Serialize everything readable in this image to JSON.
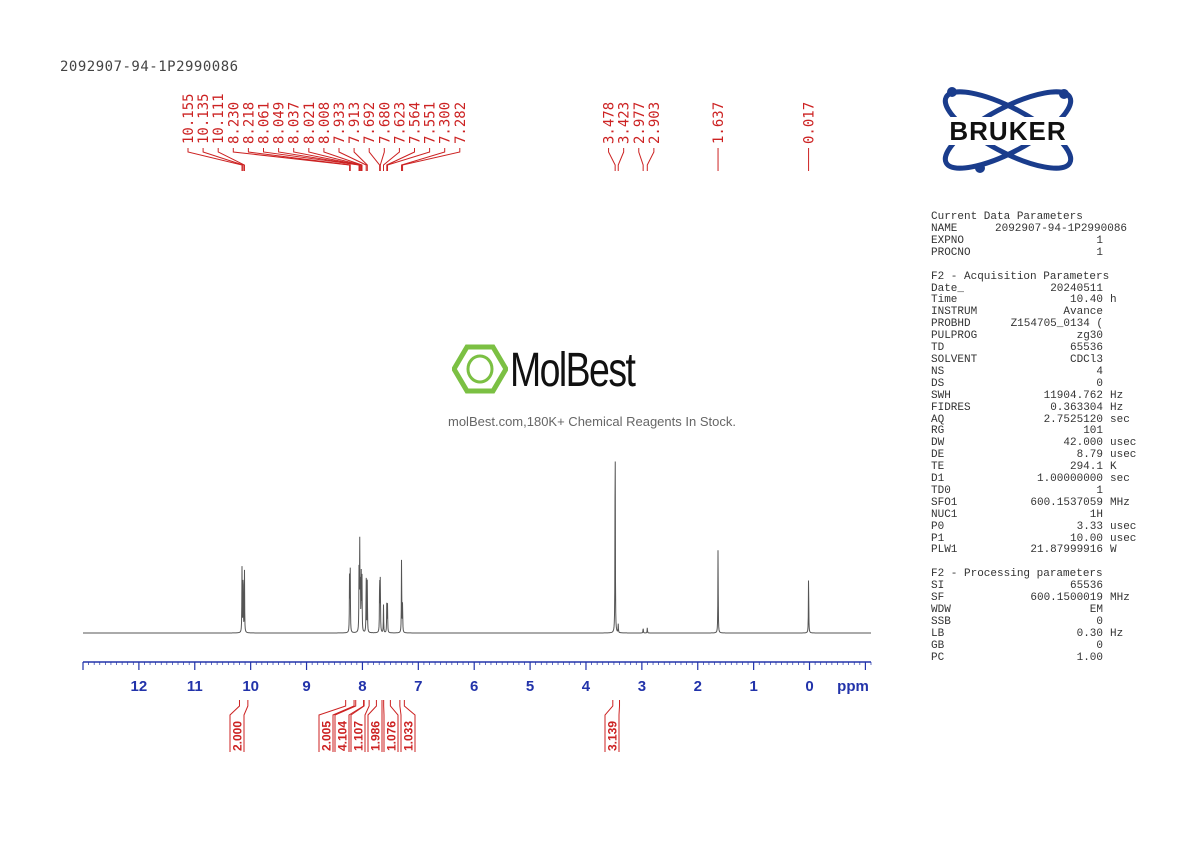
{
  "sample_id": "2092907-94-1P2990086",
  "watermark": {
    "brand": "MolBest",
    "tagline": "molBest.com,180K+ Chemical Reagents In Stock."
  },
  "logo": {
    "text": "BRUKER"
  },
  "colors": {
    "peak_labels": "#cc2222",
    "axis": "#2233aa",
    "spectrum": "#555555",
    "logo": "#1a3c8c",
    "watermark": "#7bc043"
  },
  "chart_data": {
    "type": "line",
    "title": "",
    "xlabel": "ppm",
    "ylabel": "",
    "xlim": [
      13.0,
      -1.1
    ],
    "x_reversed": true,
    "xticks": [
      12,
      11,
      10,
      9,
      8,
      7,
      6,
      5,
      4,
      3,
      2,
      1,
      0
    ],
    "xtick_labels": [
      "12",
      "11",
      "10",
      "9",
      "8",
      "7",
      "6",
      "5",
      "4",
      "3",
      "2",
      "1",
      "0"
    ],
    "peaks": [
      {
        "ppm": 10.155,
        "h": 0.3
      },
      {
        "ppm": 10.135,
        "h": 0.31
      },
      {
        "ppm": 10.111,
        "h": 0.3
      },
      {
        "ppm": 8.23,
        "h": 0.3
      },
      {
        "ppm": 8.218,
        "h": 0.28
      },
      {
        "ppm": 8.061,
        "h": 0.28
      },
      {
        "ppm": 8.049,
        "h": 0.43
      },
      {
        "ppm": 8.037,
        "h": 0.26
      },
      {
        "ppm": 8.021,
        "h": 0.26
      },
      {
        "ppm": 8.008,
        "h": 0.25
      },
      {
        "ppm": 7.933,
        "h": 0.28
      },
      {
        "ppm": 7.913,
        "h": 0.25
      },
      {
        "ppm": 7.692,
        "h": 0.28
      },
      {
        "ppm": 7.68,
        "h": 0.26
      },
      {
        "ppm": 7.623,
        "h": 0.13
      },
      {
        "ppm": 7.564,
        "h": 0.14
      },
      {
        "ppm": 7.551,
        "h": 0.13
      },
      {
        "ppm": 7.3,
        "h": 0.36
      },
      {
        "ppm": 7.282,
        "h": 0.14
      },
      {
        "ppm": 3.478,
        "h": 1.0
      },
      {
        "ppm": 3.423,
        "h": 0.04
      },
      {
        "ppm": 2.977,
        "h": 0.025
      },
      {
        "ppm": 2.903,
        "h": 0.025
      },
      {
        "ppm": 1.637,
        "h": 0.4
      },
      {
        "ppm": 0.017,
        "h": 0.28
      }
    ],
    "peak_labels": [
      "10.155",
      "10.135",
      "10.111",
      "8.230",
      "8.218",
      "8.061",
      "8.049",
      "8.037",
      "8.021",
      "8.008",
      "7.933",
      "7.913",
      "7.692",
      "7.680",
      "7.623",
      "7.564",
      "7.551",
      "7.300",
      "7.282",
      "3.478",
      "3.423",
      "2.977",
      "2.903",
      "1.637",
      "0.017"
    ],
    "integrals": [
      {
        "from": 10.2,
        "to": 10.05,
        "value": "2.000"
      },
      {
        "from": 8.3,
        "to": 8.15,
        "value": "2.005"
      },
      {
        "from": 8.12,
        "to": 7.98,
        "value": "4.104"
      },
      {
        "from": 7.97,
        "to": 7.88,
        "value": "1.107"
      },
      {
        "from": 7.75,
        "to": 7.65,
        "value": "1.986"
      },
      {
        "from": 7.62,
        "to": 7.5,
        "value": "1.076"
      },
      {
        "from": 7.33,
        "to": 7.25,
        "value": "1.033"
      },
      {
        "from": 3.52,
        "to": 3.4,
        "value": "3.139"
      }
    ]
  },
  "parameters": {
    "current": {
      "title": "Current Data Parameters",
      "rows": [
        {
          "k": "NAME",
          "v": "2092907-94-1P2990086",
          "u": ""
        },
        {
          "k": "EXPNO",
          "v": "1",
          "u": ""
        },
        {
          "k": "PROCNO",
          "v": "1",
          "u": ""
        }
      ]
    },
    "acquisition": {
      "title": "F2 - Acquisition Parameters",
      "rows": [
        {
          "k": "Date_",
          "v": "20240511",
          "u": ""
        },
        {
          "k": "Time",
          "v": "10.40",
          "u": "h"
        },
        {
          "k": "INSTRUM",
          "v": "Avance",
          "u": ""
        },
        {
          "k": "PROBHD",
          "v": "Z154705_0134 (",
          "u": ""
        },
        {
          "k": "PULPROG",
          "v": "zg30",
          "u": ""
        },
        {
          "k": "TD",
          "v": "65536",
          "u": ""
        },
        {
          "k": "SOLVENT",
          "v": "CDCl3",
          "u": ""
        },
        {
          "k": "NS",
          "v": "4",
          "u": ""
        },
        {
          "k": "DS",
          "v": "0",
          "u": ""
        },
        {
          "k": "SWH",
          "v": "11904.762",
          "u": "Hz"
        },
        {
          "k": "FIDRES",
          "v": "0.363304",
          "u": "Hz"
        },
        {
          "k": "AQ",
          "v": "2.7525120",
          "u": "sec"
        },
        {
          "k": "RG",
          "v": "101",
          "u": ""
        },
        {
          "k": "DW",
          "v": "42.000",
          "u": "usec"
        },
        {
          "k": "DE",
          "v": "8.79",
          "u": "usec"
        },
        {
          "k": "TE",
          "v": "294.1",
          "u": "K"
        },
        {
          "k": "D1",
          "v": "1.00000000",
          "u": "sec"
        },
        {
          "k": "TD0",
          "v": "1",
          "u": ""
        },
        {
          "k": "SFO1",
          "v": "600.1537059",
          "u": "MHz"
        },
        {
          "k": "NUC1",
          "v": "1H",
          "u": ""
        },
        {
          "k": "P0",
          "v": "3.33",
          "u": "usec"
        },
        {
          "k": "P1",
          "v": "10.00",
          "u": "usec"
        },
        {
          "k": "PLW1",
          "v": "21.87999916",
          "u": "W"
        }
      ]
    },
    "processing": {
      "title": "F2 - Processing parameters",
      "rows": [
        {
          "k": "SI",
          "v": "65536",
          "u": ""
        },
        {
          "k": "SF",
          "v": "600.1500019",
          "u": "MHz"
        },
        {
          "k": "WDW",
          "v": "EM",
          "u": ""
        },
        {
          "k": "SSB",
          "v": "0",
          "u": ""
        },
        {
          "k": "LB",
          "v": "0.30",
          "u": "Hz"
        },
        {
          "k": "GB",
          "v": "0",
          "u": ""
        },
        {
          "k": "PC",
          "v": "1.00",
          "u": ""
        }
      ]
    }
  }
}
